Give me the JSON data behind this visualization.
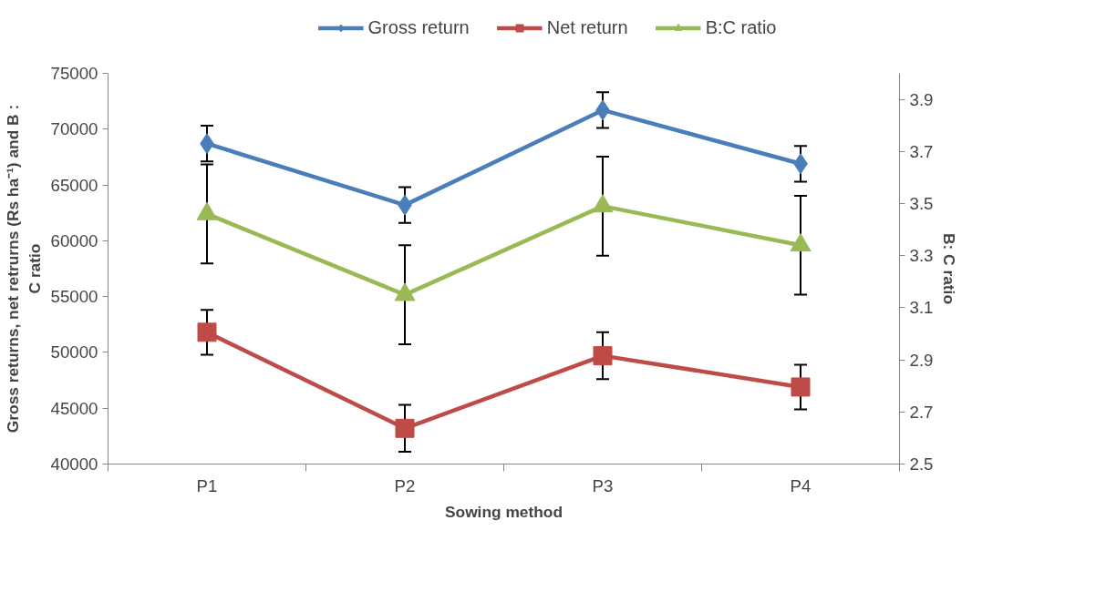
{
  "chart_data": {
    "type": "line",
    "xlabel": "Sowing method",
    "ylabel": "Gross returns, net retrurns (Rs ha⁻¹) and B : C ratio",
    "y2label": "B: C ratio",
    "categories": [
      "P1",
      "P2",
      "P3",
      "P4"
    ],
    "series": [
      {
        "name": "Gross return",
        "color": "#4a7ebb",
        "marker": "diamond",
        "values": [
          68700,
          63200,
          71700,
          66900
        ],
        "errors": [
          1600,
          1600,
          1600,
          1600
        ]
      },
      {
        "name": "Net return",
        "color": "#be4b48",
        "marker": "square",
        "values": [
          51800,
          43200,
          49700,
          46900
        ],
        "errors": [
          2000,
          2100,
          2100,
          2000
        ]
      },
      {
        "name": "B:C ratio",
        "color": "#98b954",
        "marker": "triangle",
        "axis": "y2",
        "values": [
          3.46,
          3.15,
          3.49,
          3.34
        ],
        "errors": [
          0.19,
          0.19,
          0.19,
          0.19
        ]
      }
    ],
    "ylim": [
      40000,
      75000
    ],
    "yticks": [
      40000,
      45000,
      50000,
      55000,
      60000,
      65000,
      70000,
      75000
    ],
    "y2lim": [
      2.5,
      4.0
    ],
    "y2ticks": [
      2.5,
      2.7,
      2.9,
      3.1,
      3.3,
      3.5,
      3.7,
      3.9
    ],
    "grid": false,
    "legend": "top",
    "line_style": "solid"
  }
}
